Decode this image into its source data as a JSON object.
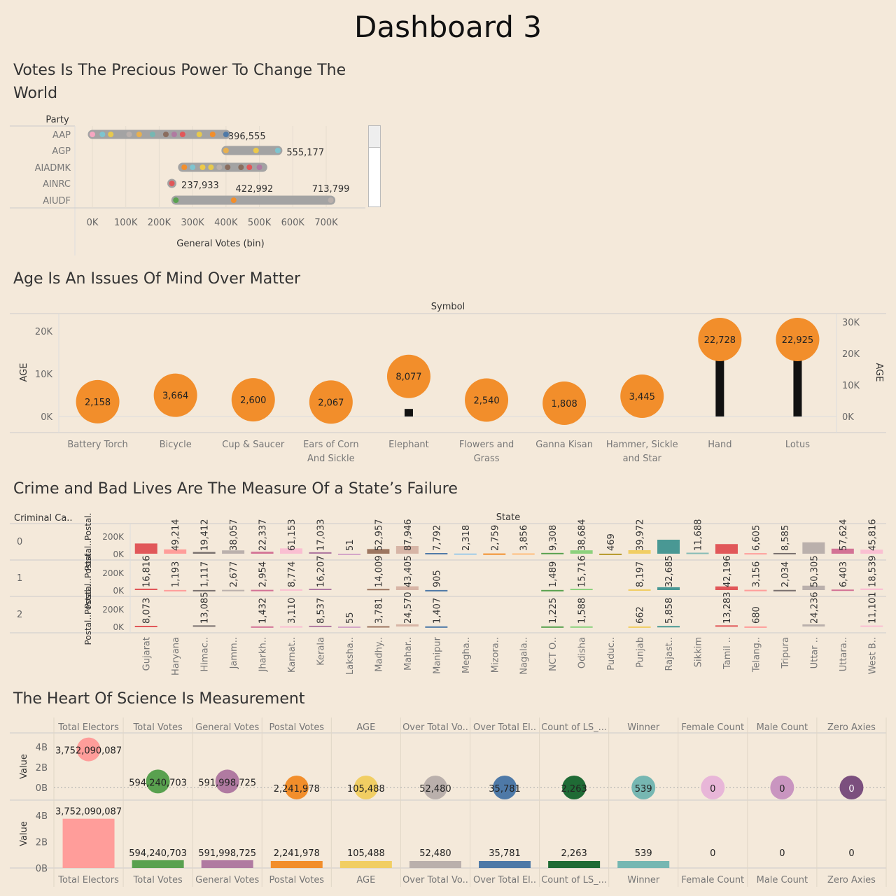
{
  "dashboard_title": "Dashboard 3",
  "sections": {
    "votes": "Votes Is The Precious Power To Change The World",
    "age": "Age Is An Issues Of Mind Over Matter",
    "crime": "Crime and Bad Lives Are The Measure Of a  State’s Failure",
    "science": "The Heart Of Science Is Measurement"
  },
  "colors": {
    "background": "#f4e9da",
    "orange": "#f28e2b",
    "gray_bar": "#a3a3a3",
    "black": "#111111"
  },
  "chart_data": [
    {
      "type": "scatter",
      "title": "Votes Is The Precious Power To Change The World",
      "row_header": "Party",
      "xlabel": "General Votes (bin)",
      "xlim": [
        0,
        700000
      ],
      "x_ticks": [
        "0K",
        "100K",
        "200K",
        "300K",
        "400K",
        "500K",
        "600K",
        "700K"
      ],
      "tick_values": [
        0,
        100000,
        200000,
        300000,
        400000,
        500000,
        600000,
        700000
      ],
      "parties": [
        {
          "name": "AAP",
          "range": [
            0,
            400000
          ],
          "dots": [
            [
              0,
              "#f6a6c1"
            ],
            [
              30000,
              "#7ec4cf"
            ],
            [
              55000,
              "#e7c94c"
            ],
            [
              110000,
              "#b9b0ac"
            ],
            [
              140000,
              "#e8b04e"
            ],
            [
              180000,
              "#76b7b2"
            ],
            [
              220000,
              "#8a6d5e"
            ],
            [
              245000,
              "#b07aa1"
            ],
            [
              270000,
              "#e15759"
            ],
            [
              320000,
              "#e7c94c"
            ],
            [
              360000,
              "#f28e2b"
            ],
            [
              400000,
              "#4e79a7"
            ]
          ],
          "label": "396,555",
          "label_at": 400000
        },
        {
          "name": "AGP",
          "range": [
            400000,
            555177
          ],
          "dots": [
            [
              400000,
              "#e8b04e"
            ],
            [
              490000,
              "#edc948"
            ],
            [
              555177,
              "#7ec4cf"
            ]
          ],
          "label": "555,177",
          "label_at": 575000
        },
        {
          "name": "AIADMK",
          "range": [
            270000,
            510000
          ],
          "dots": [
            [
              275000,
              "#f28e2b"
            ],
            [
              300000,
              "#7ec4cf"
            ],
            [
              330000,
              "#edc948"
            ],
            [
              355000,
              "#e7c94c"
            ],
            [
              380000,
              "#b9b0ac"
            ],
            [
              405000,
              "#8a6d5e"
            ],
            [
              445000,
              "#8a6d5e"
            ],
            [
              470000,
              "#e15759"
            ],
            [
              500000,
              "#b07aa1"
            ]
          ]
        },
        {
          "name": "AINRC",
          "range": [
            237933,
            237933
          ],
          "dots": [
            [
              237933,
              "#e15759"
            ]
          ],
          "label": "237,933",
          "label_at": 260000
        },
        {
          "name": "AIUDF",
          "range": [
            250000,
            713799
          ],
          "dots": [
            [
              250000,
              "#59a14f"
            ],
            [
              422992,
              "#f28e2b"
            ],
            [
              713799,
              "#b9b0ac"
            ]
          ],
          "labels": [
            {
              "text": "422,992",
              "at": 485000
            },
            {
              "text": "713,799",
              "at": 713799
            }
          ]
        }
      ]
    },
    {
      "type": "lollipop",
      "title": "Age Is An Issues Of Mind Over Matter",
      "header": "Symbol",
      "ylabel_left": "AGE",
      "ylabel_right": "AGE",
      "ylim_left": [
        0,
        20000
      ],
      "left_ticks": [
        "0K",
        "10K",
        "20K"
      ],
      "left_tick_values": [
        0,
        10000,
        20000
      ],
      "ylim_right": [
        0,
        30000
      ],
      "right_ticks": [
        "0K",
        "10K",
        "20K",
        "30K"
      ],
      "right_tick_values": [
        0,
        10000,
        20000,
        30000
      ],
      "categories": [
        "Battery Torch",
        "Bicycle",
        "Cup & Saucer",
        "Ears of Corn And Sickle",
        "Elephant",
        "Flowers and Grass",
        "Ganna Kisan",
        "Hammer, Sickle and Star",
        "Hand",
        "Lotus"
      ],
      "bar_values": [
        0,
        0,
        0,
        0,
        2400,
        0,
        0,
        0,
        22728,
        22925
      ],
      "circle_values": [
        2158,
        3664,
        2600,
        2067,
        8077,
        2540,
        1808,
        3445,
        22728,
        22925
      ],
      "circle_labels": [
        "2,158",
        "3,664",
        "2,600",
        "2,067",
        "8,077",
        "2,540",
        "1,808",
        "3,445",
        "22,728",
        "22,925"
      ]
    },
    {
      "type": "bar",
      "title": "Crime and Bad Lives Are The Measure Of a  State’s Failure",
      "header": "State",
      "row_header": "Criminal Ca..",
      "row_labels": [
        "0",
        "1",
        "2"
      ],
      "row_axis_titles": [
        "Postal..Postal.",
        "Postal..Postal..",
        "Postal..Postal.."
      ],
      "y_ticks": [
        "0K",
        "200K"
      ],
      "y_tick_values": [
        0,
        200000
      ],
      "ylim": [
        0,
        240000
      ],
      "categories": [
        "Gujarat",
        "Haryana",
        "Himac..",
        "Jamm..",
        "Jharkh..",
        "Karnat..",
        "Kerala",
        "Laksha..",
        "Madhy..",
        "Mahar..",
        "Manipur",
        "Megha..",
        "Mizora..",
        "Nagala..",
        "NCT O..",
        "Odisha",
        "Puduc..",
        "Punjab",
        "Rajast..",
        "Sikkim",
        "Tamil ..",
        "Telang..",
        "Tripura",
        "Uttar ..",
        "Uttara..",
        "West B.."
      ],
      "colors": [
        "#e15759",
        "#ff9d9a",
        "#79706e",
        "#bab0ac",
        "#d37295",
        "#fabfd2",
        "#b07aa1",
        "#d4a6c8",
        "#9d7660",
        "#d7b5a6",
        "#4e79a7",
        "#a0cbe8",
        "#f28e2b",
        "#ffbe7d",
        "#59a14f",
        "#8cd17d",
        "#b6992d",
        "#f1ce63",
        "#499894",
        "#86bcb6",
        "#e15759",
        "#ff9d9a",
        "#79706e",
        "#bab0ac",
        "#d37295",
        "#fabfd2"
      ],
      "series": [
        {
          "name": "0",
          "values": [
            116816,
            49214,
            19412,
            38057,
            22337,
            61153,
            17033,
            51,
            52957,
            87946,
            7792,
            2318,
            2759,
            3856,
            9308,
            38684,
            469,
            39972,
            160000,
            11688,
            110000,
            6605,
            8585,
            130000,
            57624,
            45816
          ],
          "labels": [
            "",
            "49,214",
            "19,412",
            "38,057",
            "22,337",
            "61,153",
            "17,033",
            "51",
            "52,957",
            "87,946",
            "7,792",
            "2,318",
            "2,759",
            "3,856",
            "9,308",
            "38,684",
            "469",
            "39,972",
            "",
            "11,688",
            "",
            "6,605",
            "8,585",
            "",
            "57,624",
            "45,816"
          ]
        },
        {
          "name": "1",
          "values": [
            16816,
            1193,
            1117,
            2677,
            2954,
            8774,
            16207,
            0,
            14009,
            43405,
            905,
            0,
            0,
            0,
            1489,
            15716,
            0,
            8197,
            32685,
            0,
            42196,
            3156,
            2034,
            50305,
            6403,
            18539
          ],
          "labels": [
            "16,816",
            "1,193",
            "1,117",
            "2,677",
            "2,954",
            "8,774",
            "16,207",
            "",
            "14,009",
            "43,405",
            "905",
            "",
            "",
            "",
            "1,489",
            "15,716",
            "",
            "8,197",
            "32,685",
            "",
            "42,196",
            "3,156",
            "2,034",
            "50,305",
            "6,403",
            "18,539"
          ]
        },
        {
          "name": "2",
          "values": [
            8073,
            0,
            13085,
            0,
            1432,
            3110,
            8537,
            55,
            3781,
            24570,
            1407,
            0,
            0,
            0,
            1225,
            1588,
            0,
            662,
            5858,
            0,
            13283,
            680,
            0,
            24236,
            0,
            11101
          ],
          "labels": [
            "8,073",
            "",
            "13,085",
            "",
            "1,432",
            "3,110",
            "8,537",
            "55",
            "3,781",
            "24,570",
            "1,407",
            "",
            "",
            "",
            "1,225",
            "1,588",
            "",
            "662",
            "5,858",
            "",
            "13,283",
            "680",
            "",
            "24,236",
            "",
            "11,101"
          ]
        }
      ]
    },
    {
      "type": "scatter",
      "title": "The Heart Of Science Is Measurement",
      "ylabel": "Value",
      "ylim": [
        0,
        4000000000
      ],
      "y_ticks": [
        "0B",
        "2B",
        "4B"
      ],
      "y_tick_values": [
        0,
        2000000000,
        4000000000
      ],
      "measures": [
        "Total Electors",
        "Total Votes",
        "General Votes",
        "Postal Votes",
        "AGE",
        "Over Total Vo..",
        "Over Total El..",
        "Count of LS_...",
        "Winner",
        "Female Count",
        "Male Count",
        "Zero Axies"
      ],
      "values": [
        3752090087,
        594240703,
        591998725,
        2241978,
        105488,
        52480,
        35781,
        2263,
        539,
        0,
        0,
        0
      ],
      "labels": [
        "3,752,090,087",
        "594,240,703",
        "591,998,725",
        "2,241,978",
        "105,488",
        "52,480",
        "35,781",
        "2,263",
        "539",
        "0",
        "0",
        "0"
      ],
      "colors": [
        "#ff9d9a",
        "#59a14f",
        "#b07aa1",
        "#f28e2b",
        "#f1ce63",
        "#bab0ac",
        "#4e79a7",
        "#1f6b35",
        "#76b7b2",
        "#e8b6d8",
        "#c995c0",
        "#7b4f7e"
      ]
    }
  ]
}
